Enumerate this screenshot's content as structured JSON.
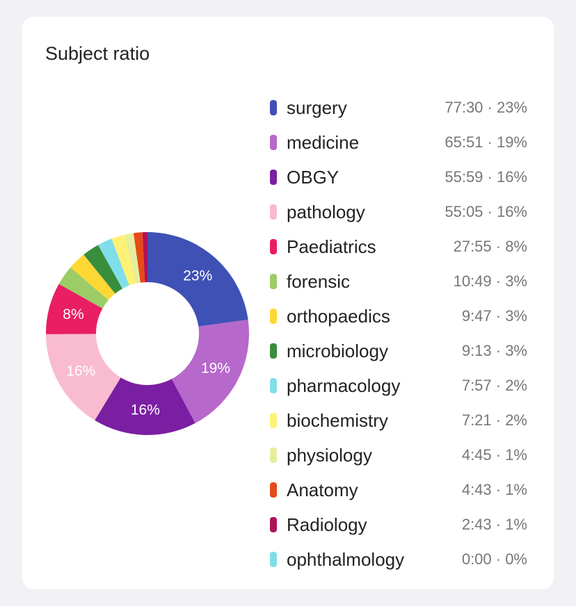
{
  "card": {
    "title": "Subject ratio"
  },
  "chart_data": {
    "type": "pie",
    "title": "Subject ratio",
    "categories": [
      "surgery",
      "medicine",
      "OBGY",
      "pathology",
      "Paediatrics",
      "forensic",
      "orthopaedics",
      "microbiology",
      "pharmacology",
      "biochemistry",
      "physiology",
      "Anatomy",
      "Radiology",
      "ophthalmology"
    ],
    "times": [
      "77:30",
      "65:51",
      "55:59",
      "55:05",
      "27:55",
      "10:49",
      "9:47",
      "9:13",
      "7:57",
      "7:21",
      "4:45",
      "4:43",
      "2:43",
      "0:00"
    ],
    "values": [
      4650,
      3951,
      3359,
      3305,
      1675,
      649,
      587,
      553,
      477,
      441,
      285,
      283,
      163,
      0
    ],
    "percent_labels": [
      "23%",
      "19%",
      "16%",
      "16%",
      "8%",
      "3%",
      "3%",
      "3%",
      "2%",
      "2%",
      "1%",
      "1%",
      "1%",
      "0%"
    ],
    "slice_labels": [
      "23%",
      "19%",
      "16%",
      "16%",
      "8%",
      "",
      "",
      "",
      "",
      "",
      "",
      "",
      "",
      ""
    ],
    "colors": [
      "#3f51b5",
      "#b768cb",
      "#7b1fa2",
      "#f8bbd0",
      "#e91e63",
      "#9ccc65",
      "#fdd835",
      "#388e3c",
      "#80deea",
      "#fff176",
      "#e6ee9c",
      "#e64a19",
      "#ad1457",
      "#80deea"
    ],
    "start_angle": "top",
    "direction": "clockwise"
  }
}
